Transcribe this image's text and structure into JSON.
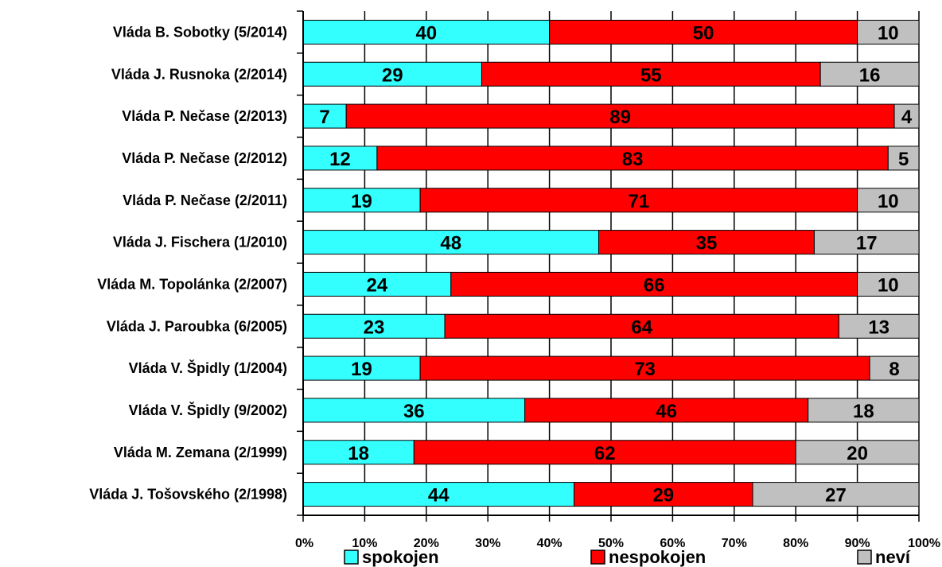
{
  "chart_data": {
    "type": "bar",
    "orientation": "horizontal",
    "stacked": true,
    "percent_stacked": true,
    "categories": [
      "Vláda B. Sobotky (5/2014)",
      "Vláda J. Rusnoka (2/2014)",
      "Vláda P. Nečase (2/2013)",
      "Vláda P. Nečase (2/2012)",
      "Vláda P. Nečase (2/2011)",
      "Vláda J. Fischera (1/2010)",
      "Vláda M. Topolánka (2/2007)",
      "Vláda J. Paroubka (6/2005)",
      "Vláda V. Špidly (1/2004)",
      "Vláda V. Špidly (9/2002)",
      "Vláda M. Zemana (2/1999)",
      "Vláda J. Tošovského (2/1998)"
    ],
    "series": [
      {
        "name": "spokojen",
        "color": "#33ffff",
        "values": [
          40,
          29,
          7,
          12,
          19,
          48,
          24,
          23,
          19,
          36,
          18,
          44
        ]
      },
      {
        "name": "nespokojen",
        "color": "#ff0000",
        "values": [
          50,
          55,
          89,
          83,
          71,
          35,
          66,
          64,
          73,
          46,
          62,
          29
        ]
      },
      {
        "name": "neví",
        "color": "#c0c0c0",
        "values": [
          10,
          16,
          4,
          5,
          10,
          17,
          10,
          13,
          8,
          18,
          20,
          27
        ]
      }
    ],
    "xlim": [
      0,
      100
    ],
    "x_ticks": [
      "0%",
      "10%",
      "20%",
      "30%",
      "40%",
      "50%",
      "60%",
      "70%",
      "80%",
      "90%",
      "100%"
    ],
    "grid": true,
    "legend_position": "bottom",
    "title": "",
    "xlabel": "",
    "ylabel": ""
  }
}
